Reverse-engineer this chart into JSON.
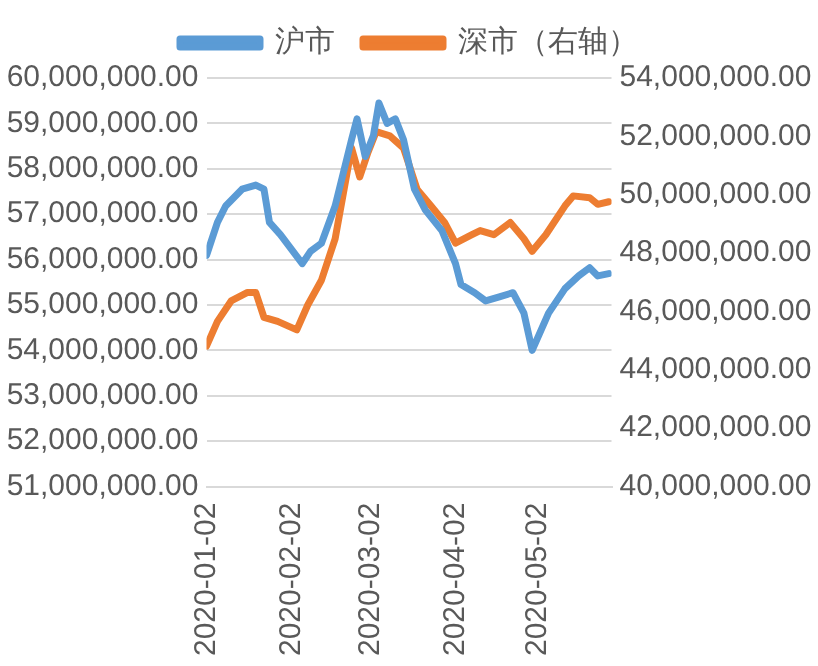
{
  "chart_data": {
    "type": "line",
    "legend": "top",
    "grid": "y",
    "marker": "none",
    "line_style": "solid",
    "xlim": [
      "2020-01-02",
      "2020-05-29"
    ],
    "xticks": [
      "2020-01-02",
      "2020-02-02",
      "2020-03-02",
      "2020-04-02",
      "2020-05-02"
    ],
    "ylim": [
      51000000,
      60000000
    ],
    "yticks": [
      {
        "value": 51000000,
        "label": "51,000,000.00"
      },
      {
        "value": 52000000,
        "label": "52,000,000.00"
      },
      {
        "value": 53000000,
        "label": "53,000,000.00"
      },
      {
        "value": 54000000,
        "label": "54,000,000.00"
      },
      {
        "value": 55000000,
        "label": "55,000,000.00"
      },
      {
        "value": 56000000,
        "label": "56,000,000.00"
      },
      {
        "value": 57000000,
        "label": "57,000,000.00"
      },
      {
        "value": 58000000,
        "label": "58,000,000.00"
      },
      {
        "value": 59000000,
        "label": "59,000,000.00"
      },
      {
        "value": 60000000,
        "label": "60,000,000.00"
      }
    ],
    "y2lim": [
      40000000,
      54000000
    ],
    "y2ticks": [
      {
        "value": 40000000,
        "label": "40,000,000.00"
      },
      {
        "value": 42000000,
        "label": "42,000,000.00"
      },
      {
        "value": 44000000,
        "label": "44,000,000.00"
      },
      {
        "value": 46000000,
        "label": "46,000,000.00"
      },
      {
        "value": 48000000,
        "label": "48,000,000.00"
      },
      {
        "value": 50000000,
        "label": "50,000,000.00"
      },
      {
        "value": 52000000,
        "label": "52,000,000.00"
      },
      {
        "value": 54000000,
        "label": "54,000,000.00"
      }
    ],
    "series": [
      {
        "name": "沪市",
        "color": "#5b9bd5",
        "x": [
          "2020-01-02",
          "2020-01-06",
          "2020-01-09",
          "2020-01-15",
          "2020-01-20",
          "2020-01-23",
          "2020-01-25",
          "2020-01-29",
          "2020-02-06",
          "2020-02-09",
          "2020-02-13",
          "2020-02-18",
          "2020-02-24",
          "2020-02-26",
          "2020-02-29",
          "2020-03-03",
          "2020-03-05",
          "2020-03-08",
          "2020-03-11",
          "2020-03-14",
          "2020-03-18",
          "2020-03-22",
          "2020-03-28",
          "2020-04-02",
          "2020-04-04",
          "2020-04-09",
          "2020-04-13",
          "2020-04-18",
          "2020-04-23",
          "2020-04-27",
          "2020-04-30",
          "2020-05-06",
          "2020-05-12",
          "2020-05-17",
          "2020-05-21",
          "2020-05-24",
          "2020-05-28"
        ],
        "values": [
          56090000,
          56820000,
          57180000,
          57550000,
          57640000,
          57550000,
          56820000,
          56550000,
          55910000,
          56180000,
          56360000,
          57180000,
          58640000,
          59100000,
          58270000,
          58730000,
          59450000,
          59000000,
          59100000,
          58640000,
          57550000,
          57090000,
          56640000,
          55910000,
          55450000,
          55270000,
          55090000,
          55180000,
          55270000,
          54820000,
          54000000,
          54820000,
          55360000,
          55640000,
          55820000,
          55640000,
          55690000
        ]
      },
      {
        "name": "深市（右轴）",
        "color": "#ed7d31",
        "axis": "y2",
        "x": [
          "2020-01-02",
          "2020-01-06",
          "2020-01-11",
          "2020-01-17",
          "2020-01-20",
          "2020-01-23",
          "2020-01-28",
          "2020-02-04",
          "2020-02-08",
          "2020-02-13",
          "2020-02-18",
          "2020-02-24",
          "2020-02-27",
          "2020-03-01",
          "2020-03-04",
          "2020-03-09",
          "2020-03-14",
          "2020-03-19",
          "2020-03-24",
          "2020-03-29",
          "2020-04-02",
          "2020-04-08",
          "2020-04-11",
          "2020-04-16",
          "2020-04-22",
          "2020-04-27",
          "2020-04-30",
          "2020-05-05",
          "2020-05-12",
          "2020-05-15",
          "2020-05-21",
          "2020-05-24",
          "2020-05-28"
        ],
        "values": [
          44810000,
          45660000,
          46360000,
          46650000,
          46650000,
          45800000,
          45660000,
          45370000,
          46220000,
          47070000,
          48490000,
          51600000,
          50610000,
          51450000,
          52160000,
          52020000,
          51600000,
          50180000,
          49620000,
          49050000,
          48340000,
          48630000,
          48770000,
          48630000,
          49050000,
          48490000,
          48060000,
          48630000,
          49620000,
          49960000,
          49900000,
          49670000,
          49760000
        ]
      }
    ]
  }
}
